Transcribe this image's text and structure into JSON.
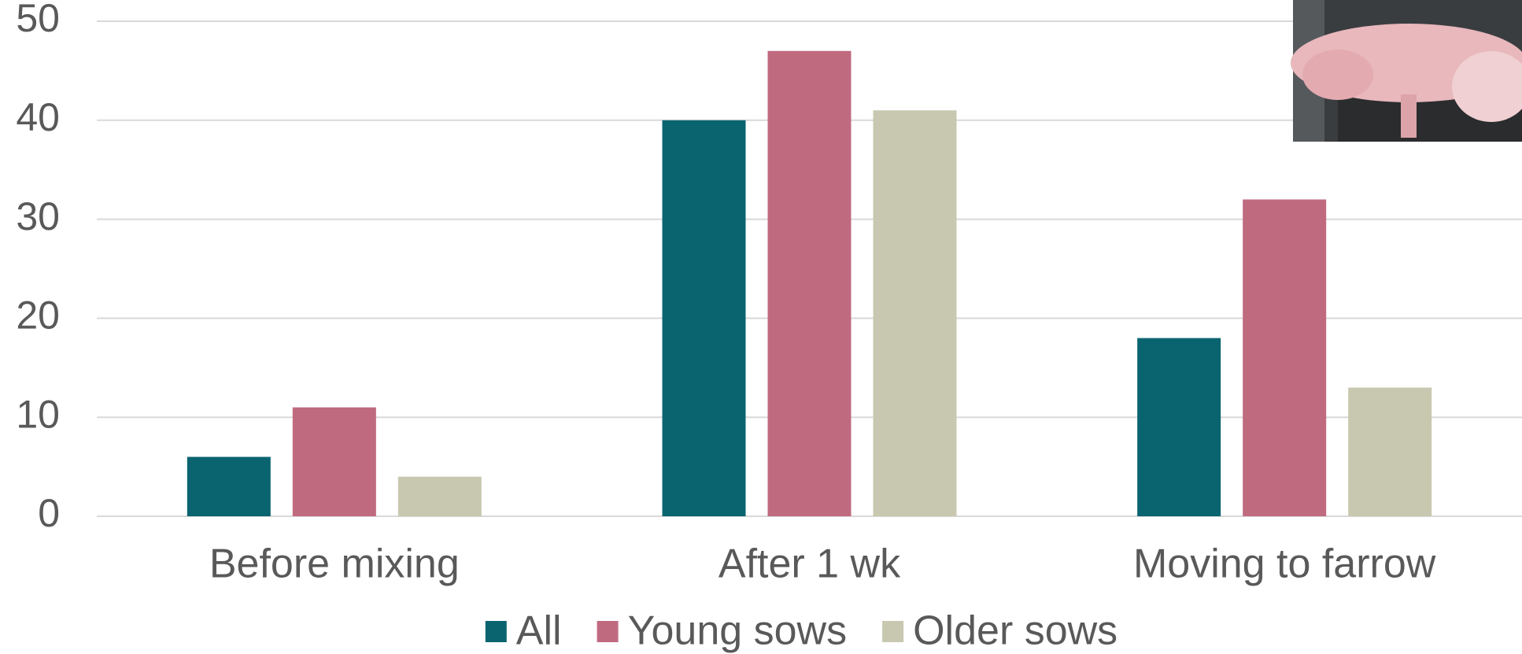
{
  "chart_data": {
    "type": "bar",
    "categories": [
      "Before mixing",
      "After 1 wk",
      "Moving to farrow"
    ],
    "series": [
      {
        "name": "All",
        "color": "#0a6470",
        "values": [
          6,
          40,
          18
        ]
      },
      {
        "name": "Young sows",
        "color": "#c06a80",
        "values": [
          11,
          47,
          32
        ]
      },
      {
        "name": "Older sows",
        "color": "#c8c8b0",
        "values": [
          4,
          41,
          13
        ]
      }
    ],
    "ylim": [
      0,
      50
    ],
    "yticks": [
      0,
      10,
      20,
      30,
      40,
      50
    ],
    "grid": true,
    "legend": "bottom"
  }
}
